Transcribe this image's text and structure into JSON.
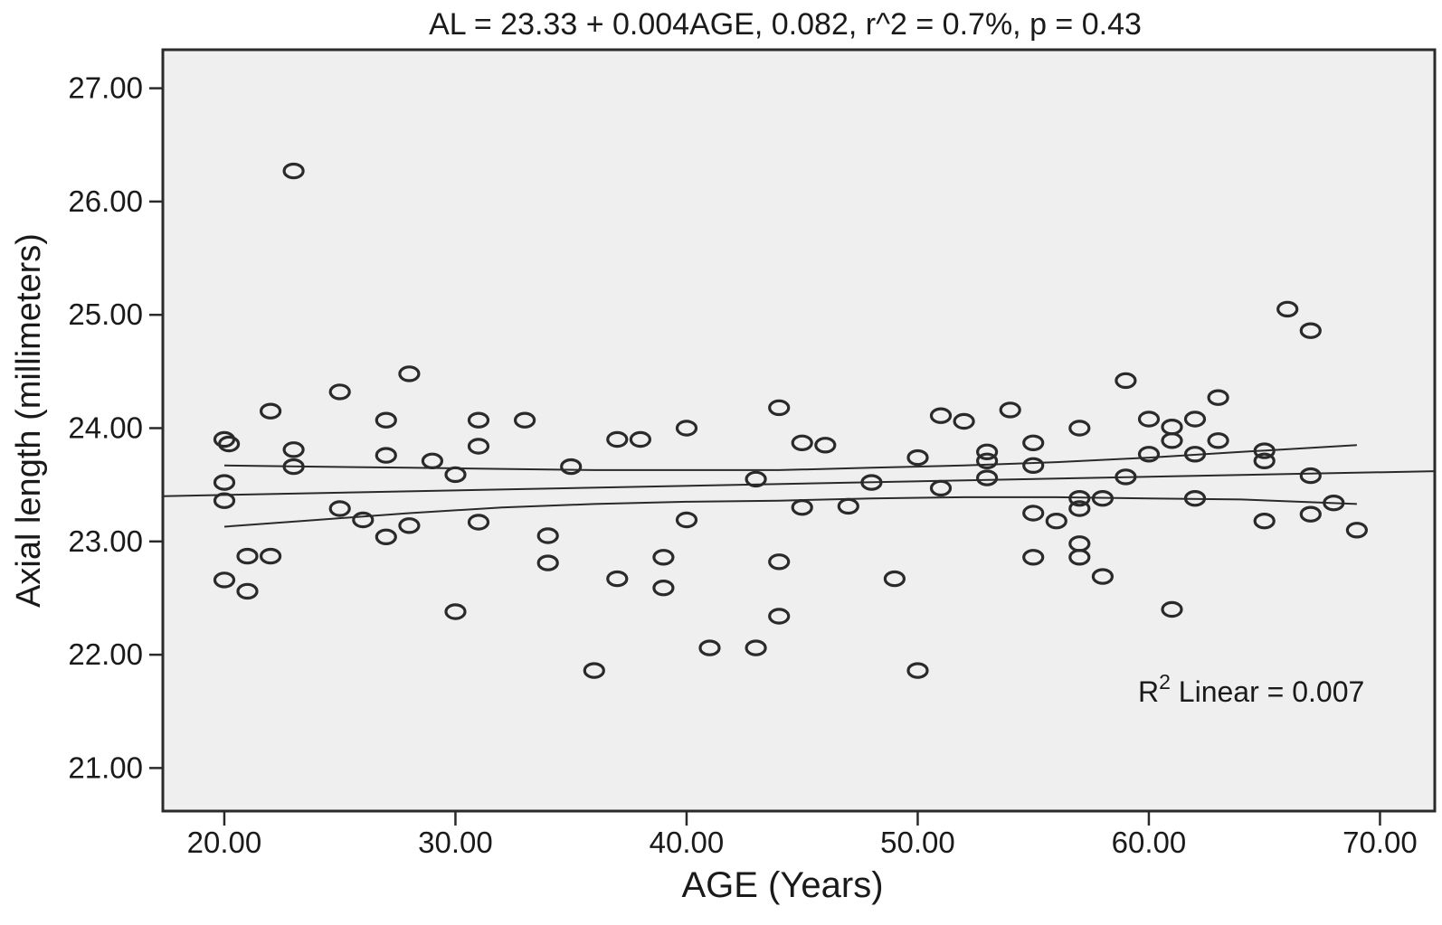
{
  "chart_data": {
    "type": "scatter",
    "title": "AL = 23.33 + 0.004AGE, 0.082, r^2 = 0.7%, p = 0.43",
    "xlabel": "AGE (Years)",
    "ylabel": "Axial length (millimeters)",
    "xlim": [
      17.34,
      72.37
    ],
    "ylim": [
      20.62,
      27.34
    ],
    "x_ticks": [
      20,
      30,
      40,
      50,
      60,
      70
    ],
    "x_tick_labels": [
      "20.00",
      "30.00",
      "40.00",
      "50.00",
      "60.00",
      "70.00"
    ],
    "y_ticks": [
      27,
      26,
      25,
      24,
      23,
      22,
      21
    ],
    "y_tick_labels": [
      "27.00",
      "26.00",
      "25.00",
      "24.00",
      "23.00",
      "22.00",
      "21.00"
    ],
    "grid": false,
    "legend": "none",
    "plot_bg": "#efefef",
    "stroke_color": "#2a2a2a",
    "annotation": {
      "base": "R",
      "sup": "2",
      "rest": " Linear = 0.007"
    },
    "points": [
      [
        23,
        26.27
      ],
      [
        66,
        25.05
      ],
      [
        67,
        24.86
      ],
      [
        28,
        24.48
      ],
      [
        59,
        24.42
      ],
      [
        25,
        24.32
      ],
      [
        63,
        24.27
      ],
      [
        44,
        24.18
      ],
      [
        54,
        24.16
      ],
      [
        22,
        24.15
      ],
      [
        51,
        24.11
      ],
      [
        27,
        24.07
      ],
      [
        31,
        24.07
      ],
      [
        33,
        24.07
      ],
      [
        60,
        24.08
      ],
      [
        62,
        24.08
      ],
      [
        52,
        24.06
      ],
      [
        61,
        24.01
      ],
      [
        40,
        24.0
      ],
      [
        57,
        24.0
      ],
      [
        20,
        23.9
      ],
      [
        20.2,
        23.86
      ],
      [
        37,
        23.9
      ],
      [
        38,
        23.9
      ],
      [
        61,
        23.89
      ],
      [
        63,
        23.89
      ],
      [
        45,
        23.87
      ],
      [
        55,
        23.87
      ],
      [
        46,
        23.85
      ],
      [
        31,
        23.84
      ],
      [
        23,
        23.81
      ],
      [
        65,
        23.8
      ],
      [
        53,
        23.79
      ],
      [
        60,
        23.77
      ],
      [
        62,
        23.77
      ],
      [
        27,
        23.76
      ],
      [
        50,
        23.74
      ],
      [
        29,
        23.71
      ],
      [
        53,
        23.71
      ],
      [
        65,
        23.71
      ],
      [
        55,
        23.67
      ],
      [
        23,
        23.66
      ],
      [
        35,
        23.66
      ],
      [
        30,
        23.59
      ],
      [
        67,
        23.58
      ],
      [
        59,
        23.57
      ],
      [
        53,
        23.56
      ],
      [
        43,
        23.55
      ],
      [
        20,
        23.52
      ],
      [
        48,
        23.52
      ],
      [
        51,
        23.47
      ],
      [
        57,
        23.38
      ],
      [
        58,
        23.38
      ],
      [
        62,
        23.38
      ],
      [
        20,
        23.36
      ],
      [
        68,
        23.34
      ],
      [
        45,
        23.3
      ],
      [
        47,
        23.31
      ],
      [
        25,
        23.29
      ],
      [
        57,
        23.29
      ],
      [
        55,
        23.25
      ],
      [
        67,
        23.24
      ],
      [
        26,
        23.19
      ],
      [
        40,
        23.19
      ],
      [
        56,
        23.18
      ],
      [
        65,
        23.18
      ],
      [
        31,
        23.17
      ],
      [
        28,
        23.14
      ],
      [
        69,
        23.1
      ],
      [
        34,
        23.05
      ],
      [
        27,
        23.04
      ],
      [
        57,
        22.98
      ],
      [
        21,
        22.87
      ],
      [
        22,
        22.87
      ],
      [
        39,
        22.86
      ],
      [
        55,
        22.86
      ],
      [
        57,
        22.86
      ],
      [
        44,
        22.82
      ],
      [
        34,
        22.81
      ],
      [
        58,
        22.69
      ],
      [
        37,
        22.67
      ],
      [
        49,
        22.67
      ],
      [
        20,
        22.66
      ],
      [
        39,
        22.59
      ],
      [
        21,
        22.56
      ],
      [
        61,
        22.4
      ],
      [
        30,
        22.38
      ],
      [
        44,
        22.34
      ],
      [
        41,
        22.06
      ],
      [
        43,
        22.06
      ],
      [
        36,
        21.86
      ],
      [
        50,
        21.86
      ]
    ],
    "fit_line": [
      [
        17.34,
        23.4
      ],
      [
        72.37,
        23.62
      ]
    ],
    "ci_upper": [
      [
        20,
        23.67
      ],
      [
        24,
        23.66
      ],
      [
        28,
        23.65
      ],
      [
        32,
        23.64
      ],
      [
        36,
        23.63
      ],
      [
        40,
        23.63
      ],
      [
        44,
        23.63
      ],
      [
        48,
        23.65
      ],
      [
        52,
        23.67
      ],
      [
        56,
        23.7
      ],
      [
        60,
        23.74
      ],
      [
        64,
        23.79
      ],
      [
        69,
        23.85
      ]
    ],
    "ci_lower": [
      [
        20,
        23.13
      ],
      [
        24,
        23.19
      ],
      [
        28,
        23.25
      ],
      [
        32,
        23.3
      ],
      [
        36,
        23.33
      ],
      [
        40,
        23.35
      ],
      [
        44,
        23.36
      ],
      [
        48,
        23.38
      ],
      [
        52,
        23.39
      ],
      [
        56,
        23.39
      ],
      [
        60,
        23.38
      ],
      [
        64,
        23.37
      ],
      [
        69,
        23.33
      ]
    ]
  }
}
